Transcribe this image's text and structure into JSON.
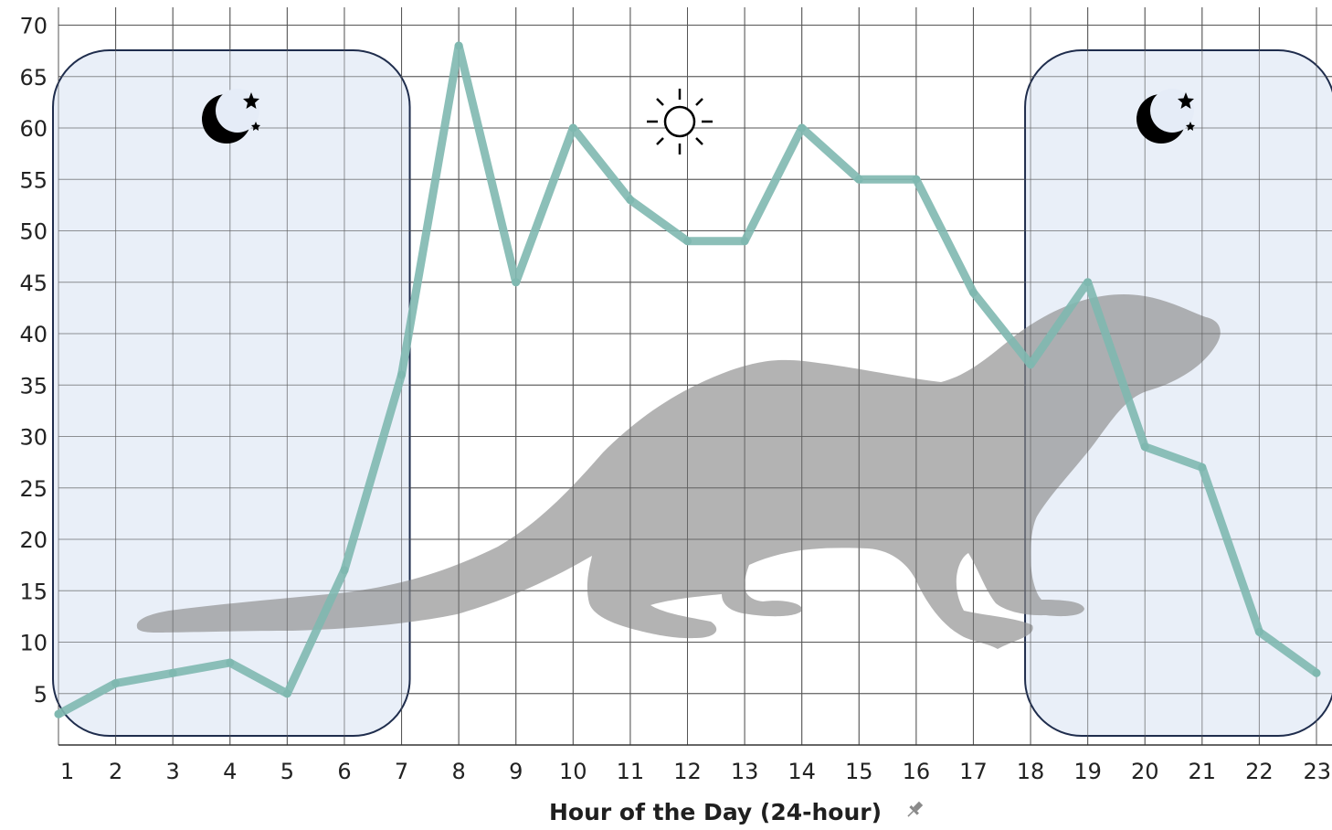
{
  "chart_data": {
    "type": "line",
    "title": "",
    "xlabel": "Hour of the Day (24-hour)",
    "ylabel": "",
    "x": [
      1,
      2,
      3,
      4,
      5,
      6,
      7,
      8,
      9,
      10,
      11,
      12,
      13,
      14,
      15,
      16,
      17,
      18,
      19,
      20,
      21,
      22,
      23
    ],
    "y": [
      3,
      6,
      7,
      8,
      5,
      17,
      36,
      68,
      45,
      60,
      53,
      49,
      49,
      60,
      55,
      55,
      44,
      37,
      45,
      29,
      27,
      11,
      7
    ],
    "xlim": [
      1,
      23
    ],
    "ylim": [
      0,
      70
    ],
    "yticks": [
      5,
      10,
      15,
      20,
      25,
      30,
      35,
      40,
      45,
      50,
      55,
      60,
      65,
      70
    ],
    "grid": true,
    "line_color": "#7fb8b0",
    "night_regions": [
      {
        "from": 1,
        "to": 7,
        "icon": "moon-stars-icon"
      },
      {
        "from": 18,
        "to": 23,
        "icon": "moon-stars-icon"
      }
    ],
    "day_icon": "sun-icon",
    "night_fill": "#e5ecf7",
    "night_border": "#1f2d4d",
    "silhouette": "otter-silhouette"
  }
}
